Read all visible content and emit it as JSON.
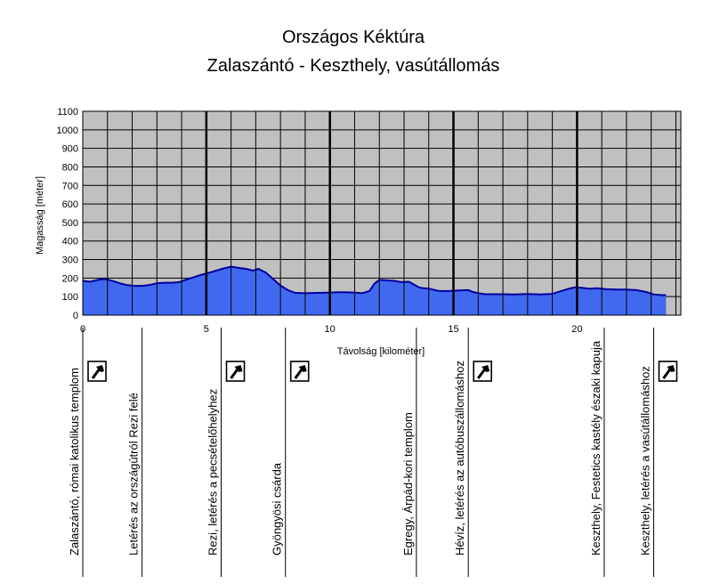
{
  "chart_data": {
    "type": "area",
    "title_line1": "Országos Kéktúra",
    "title_line2": "Zalaszántó - Keszthely, vasútállomás",
    "xlabel": "Távolság [kilométer]",
    "ylabel": "Magasság [méter]",
    "xlim": [
      0,
      24.2
    ],
    "ylim": [
      0,
      1100
    ],
    "x_ticks": [
      0,
      5,
      10,
      15,
      20
    ],
    "y_ticks": [
      0,
      100,
      200,
      300,
      400,
      500,
      600,
      700,
      800,
      900,
      1000,
      1100
    ],
    "grid": true,
    "grid_x_km": 1,
    "major_x_km": 5,
    "colors": {
      "plot_bg": "#c0c0c0",
      "fill": "#4169f0",
      "line": "#0000a0",
      "grid": "#000000"
    },
    "x": [
      0,
      0.3,
      0.6,
      0.9,
      1.2,
      1.5,
      1.8,
      2.1,
      2.4,
      2.7,
      3.0,
      3.3,
      3.6,
      3.9,
      4.2,
      4.5,
      4.8,
      5.1,
      5.4,
      5.7,
      6.0,
      6.3,
      6.6,
      6.9,
      7.1,
      7.4,
      7.7,
      8.0,
      8.3,
      8.6,
      9.0,
      9.5,
      10.0,
      10.5,
      11.0,
      11.3,
      11.6,
      11.8,
      12.0,
      12.3,
      12.6,
      12.9,
      13.2,
      13.4,
      13.6,
      13.8,
      14.0,
      14.4,
      14.8,
      15.2,
      15.6,
      15.8,
      16.0,
      16.3,
      16.6,
      17.0,
      17.5,
      18.0,
      18.5,
      19.0,
      19.3,
      19.6,
      19.9,
      20.2,
      20.5,
      20.8,
      21.2,
      21.6,
      22.0,
      22.4,
      22.8,
      23.1,
      23.4,
      23.6
    ],
    "y": [
      185,
      180,
      190,
      195,
      185,
      172,
      162,
      158,
      158,
      163,
      172,
      175,
      175,
      178,
      192,
      205,
      218,
      228,
      240,
      252,
      262,
      255,
      250,
      240,
      250,
      230,
      195,
      160,
      135,
      120,
      118,
      120,
      122,
      124,
      122,
      118,
      130,
      170,
      190,
      188,
      185,
      178,
      180,
      165,
      150,
      145,
      143,
      130,
      130,
      133,
      135,
      125,
      118,
      113,
      113,
      113,
      112,
      114,
      112,
      115,
      128,
      140,
      150,
      148,
      142,
      145,
      140,
      138,
      138,
      135,
      125,
      112,
      108,
      108
    ],
    "waypoints": [
      {
        "km": 0.0,
        "label": "Zalaszántó, római katolikus templom",
        "stamp": true
      },
      {
        "km": 2.4,
        "label": "Letérés az országútról Rezi felé",
        "stamp": false
      },
      {
        "km": 5.6,
        "label": "Rezi, letérés a pecsételőhelyhez",
        "stamp": true
      },
      {
        "km": 8.2,
        "label": "Gyöngyösi csárda",
        "stamp": true
      },
      {
        "km": 13.5,
        "label": "Egregy, Árpád-kori templom",
        "stamp": false
      },
      {
        "km": 15.6,
        "label": "Hévíz, letérés az autóbuszállomáshoz",
        "stamp": true
      },
      {
        "km": 21.1,
        "label": "Keszthely, Festetics kastély északi kapuja",
        "stamp": false
      },
      {
        "km": 23.1,
        "label": "Keszthely, letérés a vasútállomáshoz",
        "stamp": true
      }
    ]
  }
}
